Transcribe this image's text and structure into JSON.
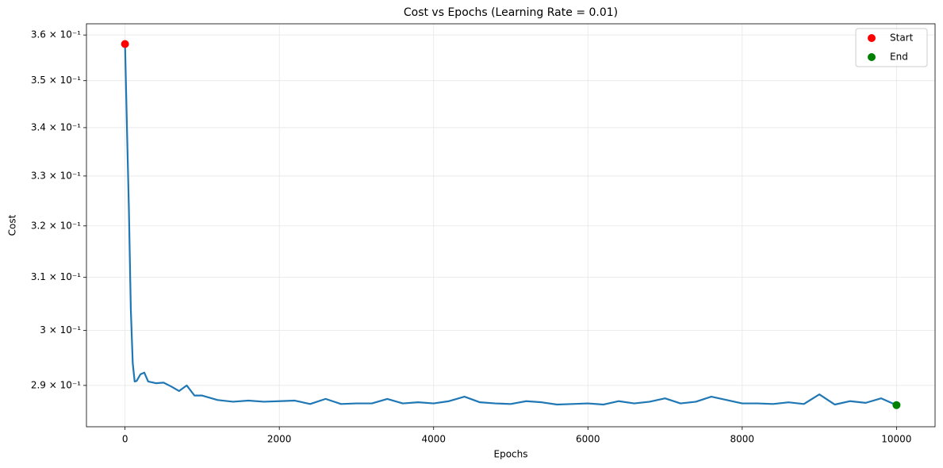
{
  "chart_data": {
    "type": "line",
    "title": "Cost vs Epochs (Learning Rate = 0.01)",
    "x_label": "Epochs",
    "y_label": "Cost",
    "x": [
      0,
      25,
      50,
      75,
      100,
      125,
      150,
      200,
      250,
      300,
      400,
      500,
      600,
      700,
      800,
      900,
      1000,
      1200,
      1400,
      1600,
      1800,
      2000,
      2200,
      2400,
      2600,
      2800,
      3000,
      3200,
      3400,
      3600,
      3800,
      4000,
      4200,
      4400,
      4600,
      4800,
      5000,
      5200,
      5400,
      5600,
      5800,
      6000,
      6200,
      6400,
      6600,
      6800,
      7000,
      7200,
      7400,
      7600,
      7800,
      8000,
      8200,
      8400,
      8600,
      8800,
      9000,
      9200,
      9400,
      9600,
      9800,
      10000
    ],
    "series": [
      {
        "color": "#1f77b4",
        "values": [
          0.358,
          0.34,
          0.3235,
          0.304,
          0.294,
          0.2907,
          0.2908,
          0.292,
          0.2923,
          0.2907,
          0.2904,
          0.2905,
          0.2898,
          0.289,
          0.29,
          0.2882,
          0.2882,
          0.2874,
          0.2871,
          0.2873,
          0.2871,
          0.2872,
          0.2873,
          0.2867,
          0.2876,
          0.2867,
          0.2868,
          0.2868,
          0.2876,
          0.2868,
          0.287,
          0.2868,
          0.2872,
          0.288,
          0.287,
          0.2868,
          0.2867,
          0.2872,
          0.287,
          0.2866,
          0.2867,
          0.2868,
          0.2866,
          0.2872,
          0.2868,
          0.2871,
          0.2877,
          0.2868,
          0.2871,
          0.288,
          0.2874,
          0.2868,
          0.2868,
          0.2867,
          0.287,
          0.2867,
          0.2884,
          0.2866,
          0.2872,
          0.2869,
          0.2877,
          0.2865
        ]
      }
    ],
    "points": [
      {
        "name": "Start",
        "color": "#ff0000",
        "x": 0,
        "y": 0.358
      },
      {
        "name": "End",
        "color": "#008000",
        "x": 10000,
        "y": 0.2865
      }
    ],
    "xlim": [
      -500,
      10500
    ],
    "xticks": [
      0,
      2000,
      4000,
      6000,
      8000,
      10000
    ],
    "ylim": [
      0.2827,
      0.3625
    ],
    "log_y": true,
    "yticks": [
      {
        "value": 0.29,
        "label": "2.9 × 10⁻¹"
      },
      {
        "value": 0.3,
        "label": "3 × 10⁻¹"
      },
      {
        "value": 0.31,
        "label": "3.1 × 10⁻¹"
      },
      {
        "value": 0.32,
        "label": "3.2 × 10⁻¹"
      },
      {
        "value": 0.33,
        "label": "3.3 × 10⁻¹"
      },
      {
        "value": 0.34,
        "label": "3.4 × 10⁻¹"
      },
      {
        "value": 0.35,
        "label": "3.5 × 10⁻¹"
      },
      {
        "value": 0.36,
        "label": "3.6 × 10⁻¹"
      }
    ],
    "grid": true,
    "legend": "upper right"
  }
}
